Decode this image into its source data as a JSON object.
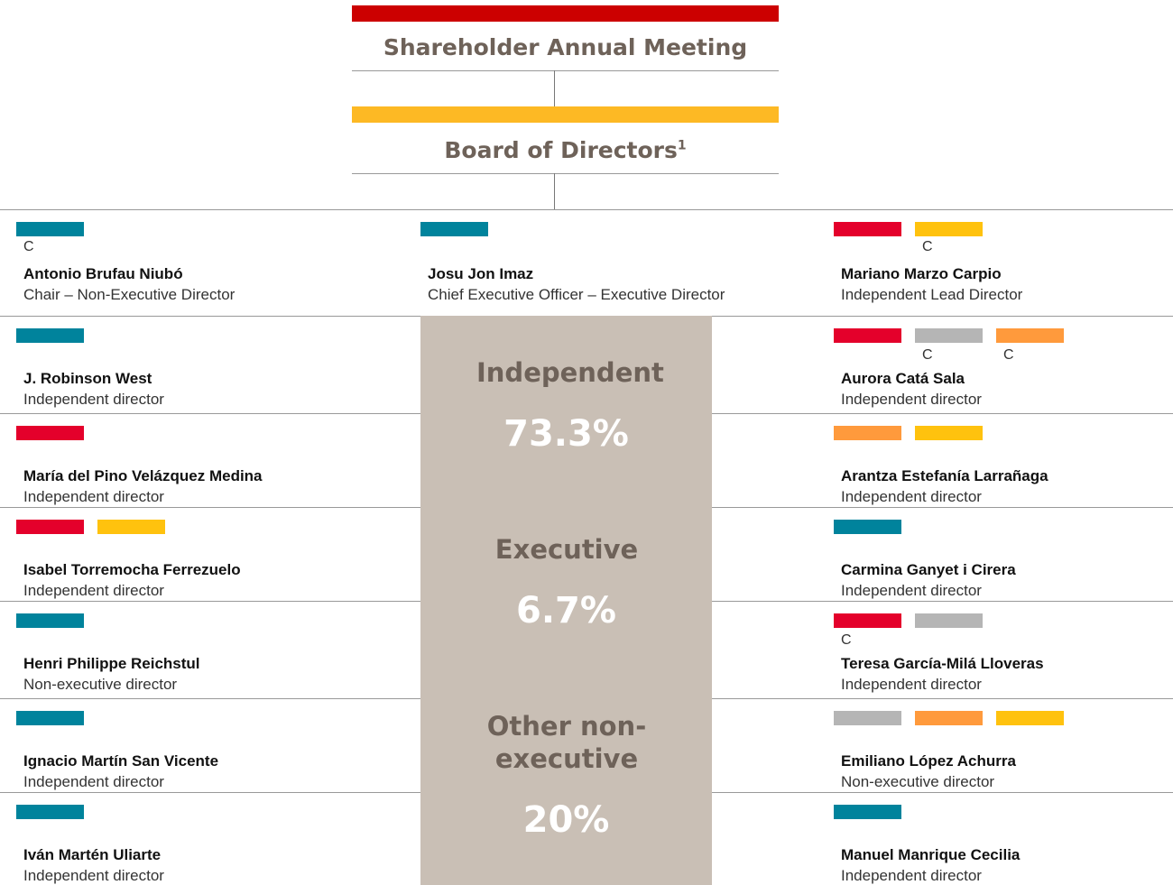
{
  "header": {
    "top": {
      "title": "Shareholder Annual Meeting",
      "color": "#cc0000"
    },
    "board": {
      "title": "Board of Directors",
      "note": "1",
      "color": "#fdb924"
    }
  },
  "rows": [
    {
      "left": {
        "name": "Antonio Brufau Niubó",
        "role": "Chair – Non-Executive Director",
        "committees": [
          {
            "color": "#00839c",
            "label": "C"
          }
        ]
      },
      "center": {
        "name": "Josu Jon Imaz",
        "role": "Chief Executive Officer – Executive Director",
        "committees": [
          {
            "color": "#00839c"
          }
        ]
      },
      "right": {
        "name": "Mariano Marzo Carpio",
        "role": "Independent Lead Director",
        "committees": [
          {
            "color": "#e4002b"
          },
          {
            "color": "#ffc20e",
            "label": "C"
          }
        ]
      }
    },
    {
      "left": {
        "name": "J. Robinson West",
        "role": "Independent director",
        "committees": [
          {
            "color": "#00839c"
          }
        ]
      },
      "right": {
        "name": "Aurora Catá Sala",
        "role": "Independent director",
        "committees": [
          {
            "color": "#e4002b"
          },
          {
            "color": "#b5b5b5",
            "label": "C"
          },
          {
            "color": "#ff9a3c",
            "label": "C"
          }
        ]
      }
    },
    {
      "left": {
        "name": "María del Pino Velázquez Medina",
        "role": "Independent director",
        "committees": [
          {
            "color": "#e4002b"
          }
        ]
      },
      "right": {
        "name": "Arantza Estefanía Larrañaga",
        "role": "Independent director",
        "committees": [
          {
            "color": "#ff9a3c"
          },
          {
            "color": "#ffc20e"
          }
        ]
      }
    },
    {
      "left": {
        "name": "Isabel Torremocha Ferrezuelo",
        "role": "Independent director",
        "committees": [
          {
            "color": "#e4002b"
          },
          {
            "color": "#ffc20e"
          }
        ]
      },
      "right": {
        "name": "Carmina Ganyet i Cirera",
        "role": "Independent director",
        "committees": [
          {
            "color": "#00839c"
          }
        ]
      }
    },
    {
      "left": {
        "name": "Henri Philippe Reichstul",
        "role": "Non-executive director",
        "committees": [
          {
            "color": "#00839c"
          }
        ]
      },
      "right": {
        "name": "Teresa García-Milá Lloveras",
        "role": "Independent director",
        "committees": [
          {
            "color": "#e4002b",
            "label": "C"
          },
          {
            "color": "#b5b5b5"
          }
        ]
      }
    },
    {
      "left": {
        "name": "Ignacio Martín San Vicente",
        "role": "Independent director",
        "committees": [
          {
            "color": "#00839c"
          }
        ]
      },
      "right": {
        "name": "Emiliano López Achurra",
        "role": "Non-executive director",
        "committees": [
          {
            "color": "#b5b5b5"
          },
          {
            "color": "#ff9a3c"
          },
          {
            "color": "#ffc20e"
          }
        ]
      }
    },
    {
      "left": {
        "name": "Iván Martén Uliarte",
        "role": "Independent director",
        "committees": [
          {
            "color": "#00839c"
          }
        ]
      },
      "right": {
        "name": "Manuel Manrique Cecilia",
        "role": "Independent director",
        "committees": [
          {
            "color": "#00839c"
          }
        ]
      }
    }
  ],
  "composition": [
    {
      "label": "Independent",
      "value": "73.3%"
    },
    {
      "label": "Executive",
      "value": "6.7%"
    },
    {
      "label": "Other non-executive",
      "value": "20%"
    }
  ]
}
